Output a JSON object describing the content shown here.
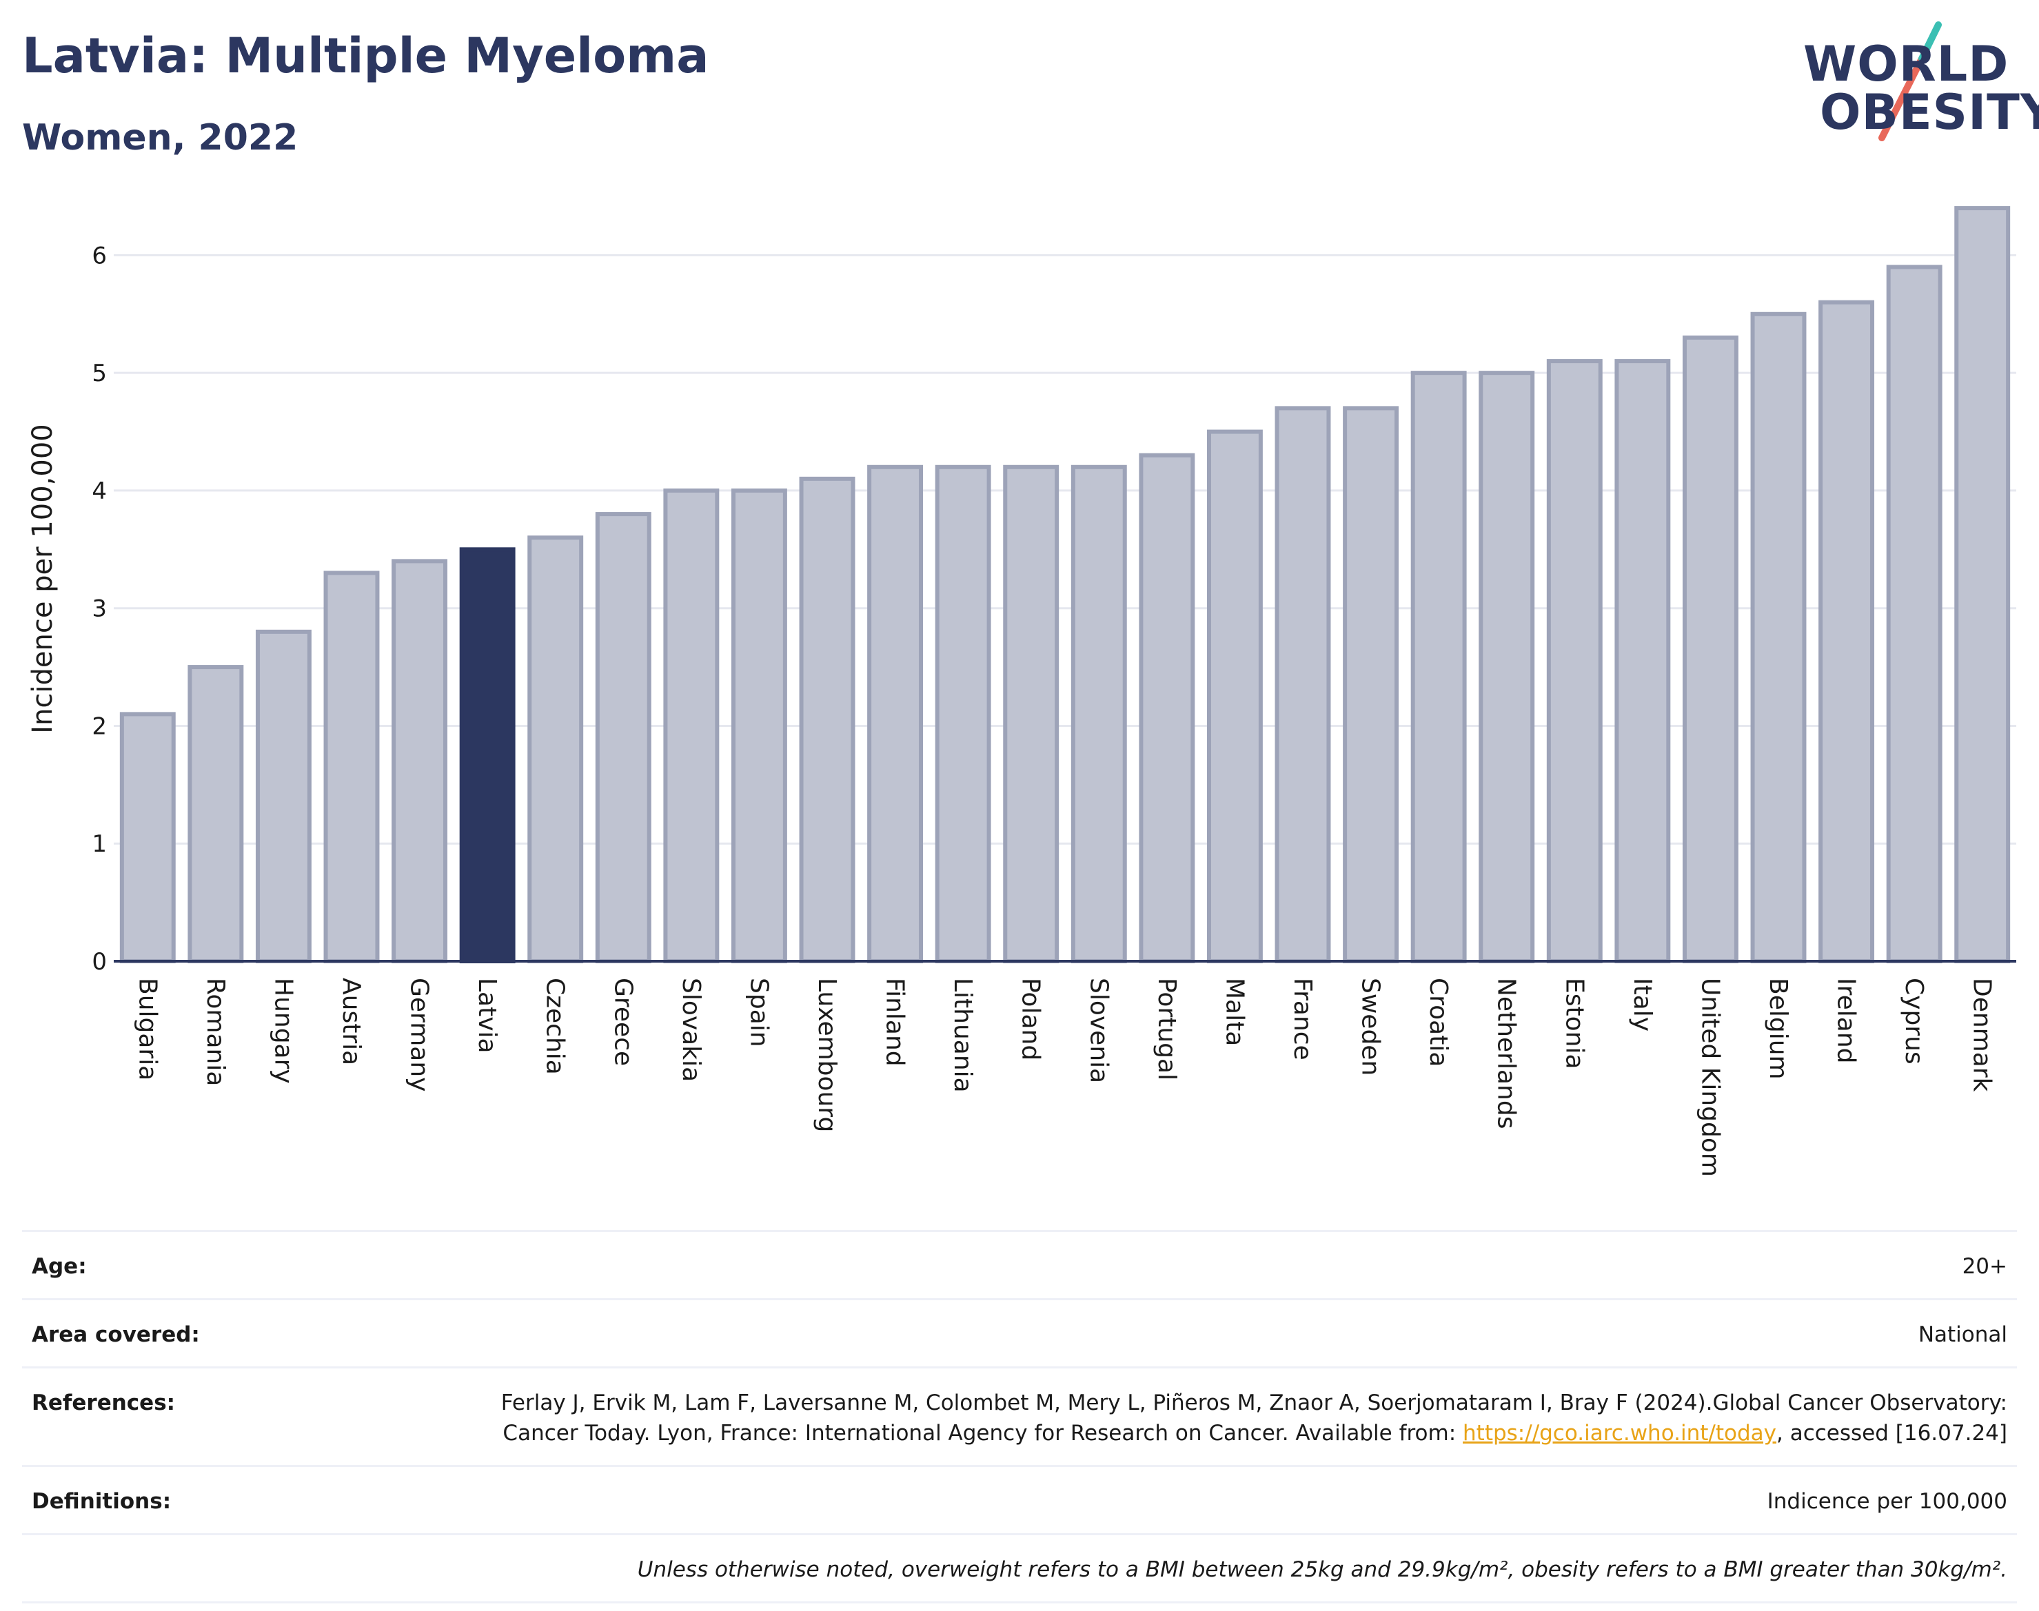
{
  "header": {
    "title": "Latvia: Multiple Myeloma",
    "subtitle": "Women, 2022"
  },
  "logo": {
    "line1": "WORLD",
    "line2": "OBESITY"
  },
  "colors": {
    "highlight": "#2c3760",
    "bar_fill": "#bfc3d1",
    "bar_stroke": "#9da3b8",
    "title": "#2c3760",
    "link": "#e8a317"
  },
  "chart_data": {
    "type": "bar",
    "ylabel": "Incidence per 100,000",
    "xlabel": "",
    "ylim": [
      0,
      6.5
    ],
    "yticks": [
      0,
      1,
      2,
      3,
      4,
      5,
      6
    ],
    "grid": true,
    "highlight": "Latvia",
    "categories": [
      "Bulgaria",
      "Romania",
      "Hungary",
      "Austria",
      "Germany",
      "Latvia",
      "Czechia",
      "Greece",
      "Slovakia",
      "Spain",
      "Luxembourg",
      "Finland",
      "Lithuania",
      "Poland",
      "Slovenia",
      "Portugal",
      "Malta",
      "France",
      "Sweden",
      "Croatia",
      "Netherlands",
      "Estonia",
      "Italy",
      "United Kingdom",
      "Belgium",
      "Ireland",
      "Cyprus",
      "Denmark"
    ],
    "values": [
      2.1,
      2.5,
      2.8,
      3.3,
      3.4,
      3.5,
      3.6,
      3.8,
      4.0,
      4.0,
      4.1,
      4.2,
      4.2,
      4.2,
      4.2,
      4.3,
      4.5,
      4.7,
      4.7,
      5.0,
      5.0,
      5.1,
      5.1,
      5.3,
      5.5,
      5.6,
      5.9,
      6.4
    ]
  },
  "meta": {
    "age_label": "Age:",
    "age_value": "20+",
    "area_label": "Area covered:",
    "area_value": "National",
    "references_label": "References:",
    "references_text": "Ferlay J, Ervik M, Lam F, Laversanne M, Colombet M, Mery L, Piñeros M, Znaor A, Soerjomataram I, Bray F (2024).Global Cancer Observatory: Cancer Today. Lyon, France: International Agency for Research on Cancer. Available from: ",
    "references_link": "https://gco.iarc.who.int/today",
    "references_suffix": ", accessed [16.07.24]",
    "definitions_label": "Definitions:",
    "definitions_value": "Indicence per 100,000",
    "note": "Unless otherwise noted, overweight refers to a BMI between 25kg and 29.9kg/m², obesity refers to a BMI greater than 30kg/m²."
  }
}
